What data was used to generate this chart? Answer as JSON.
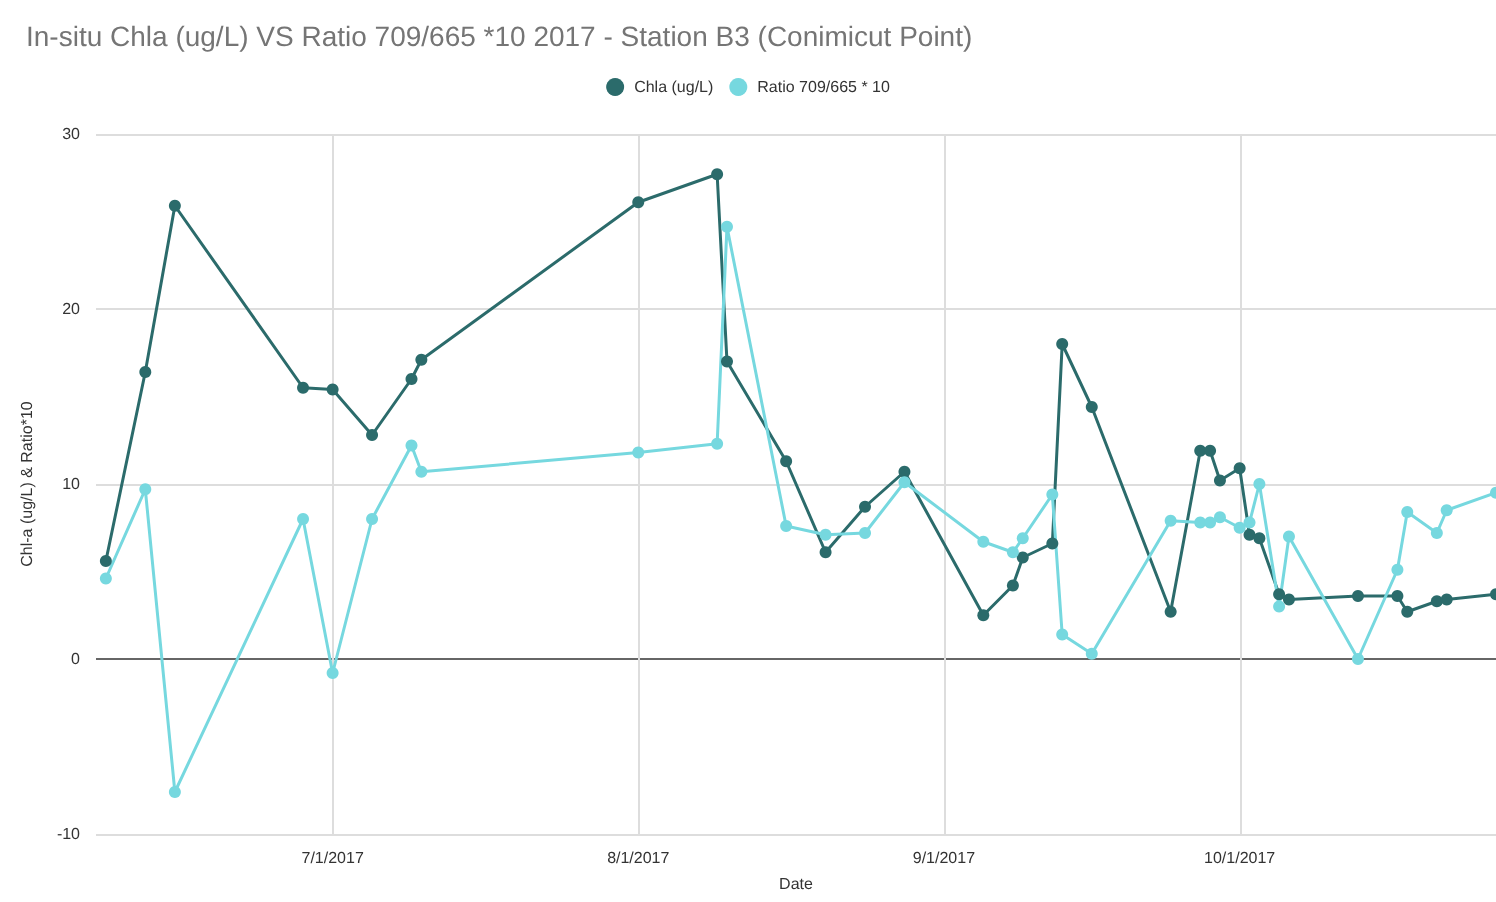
{
  "chart_data": {
    "type": "line",
    "title": "In-situ Chla (ug/L) VS Ratio 709/665 *10 2017 - Station B3 (Conimicut Point)",
    "xlabel": "Date",
    "ylabel": "Chl-a (ug/L) & Ratio*10",
    "x": [
      "2017-06-08",
      "2017-06-12",
      "2017-06-15",
      "2017-06-28",
      "2017-07-01",
      "2017-07-05",
      "2017-07-09",
      "2017-07-10",
      "2017-08-01",
      "2017-08-09",
      "2017-08-10",
      "2017-08-16",
      "2017-08-20",
      "2017-08-24",
      "2017-08-28",
      "2017-09-05",
      "2017-09-08",
      "2017-09-09",
      "2017-09-12",
      "2017-09-13",
      "2017-09-16",
      "2017-09-24",
      "2017-09-27",
      "2017-09-28",
      "2017-09-29",
      "2017-10-01",
      "2017-10-02",
      "2017-10-03",
      "2017-10-05",
      "2017-10-06",
      "2017-10-13",
      "2017-10-17",
      "2017-10-18",
      "2017-10-21",
      "2017-10-22",
      "2017-10-27"
    ],
    "series": [
      {
        "name": "Chla (ug/L)",
        "color": "#2b6b6b",
        "values": [
          5.6,
          16.4,
          25.9,
          15.5,
          15.4,
          12.8,
          16.0,
          17.1,
          26.1,
          27.7,
          17.0,
          11.3,
          6.1,
          8.7,
          10.7,
          2.5,
          4.2,
          5.8,
          6.6,
          18.0,
          14.4,
          2.7,
          11.9,
          11.9,
          10.2,
          10.9,
          7.1,
          6.9,
          3.7,
          3.4,
          3.6,
          3.6,
          2.7,
          3.3,
          3.4,
          3.7
        ]
      },
      {
        "name": "Ratio 709/665 * 10",
        "color": "#76d8df",
        "values": [
          4.6,
          9.7,
          -7.6,
          8.0,
          -0.8,
          8.0,
          12.2,
          10.7,
          11.8,
          12.3,
          24.7,
          7.6,
          7.1,
          7.2,
          10.1,
          6.7,
          6.1,
          6.9,
          9.4,
          1.4,
          0.3,
          7.9,
          7.8,
          7.8,
          8.1,
          7.5,
          7.8,
          10.0,
          3.0,
          7.0,
          0.0,
          5.1,
          8.4,
          7.2,
          8.5,
          9.5
        ]
      }
    ],
    "xlim": [
      "2017-06-07",
      "2017-10-27"
    ],
    "xticks": [
      {
        "value": "2017-07-01",
        "label": "7/1/2017"
      },
      {
        "value": "2017-08-01",
        "label": "8/1/2017"
      },
      {
        "value": "2017-09-01",
        "label": "9/1/2017"
      },
      {
        "value": "2017-10-01",
        "label": "10/1/2017"
      }
    ],
    "ylim": [
      -10,
      30
    ],
    "yticks": [
      -10,
      0,
      10,
      20,
      30
    ],
    "grid": true,
    "legend": "top",
    "marker": "circle",
    "line_style": "solid"
  }
}
